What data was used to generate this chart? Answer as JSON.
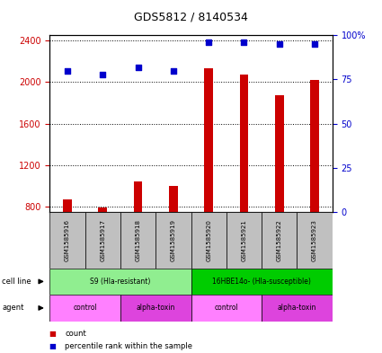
{
  "title": "GDS5812 / 8140534",
  "samples": [
    "GSM1585916",
    "GSM1585917",
    "GSM1585918",
    "GSM1585919",
    "GSM1585920",
    "GSM1585921",
    "GSM1585922",
    "GSM1585923"
  ],
  "counts": [
    870,
    790,
    1040,
    1000,
    2130,
    2070,
    1870,
    2020
  ],
  "percentile_ranks": [
    80,
    78,
    82,
    80,
    96,
    96,
    95,
    95
  ],
  "ylim_left": [
    750,
    2450
  ],
  "ylim_right": [
    0,
    100
  ],
  "yticks_left": [
    800,
    1200,
    1600,
    2000,
    2400
  ],
  "yticks_right": [
    0,
    25,
    50,
    75,
    100
  ],
  "cell_line_groups": [
    {
      "label": "S9 (Hla-resistant)",
      "start": 0,
      "end": 3,
      "color": "#90EE90"
    },
    {
      "label": "16HBE14o- (Hla-susceptible)",
      "start": 4,
      "end": 7,
      "color": "#00CC00"
    }
  ],
  "agent_groups": [
    {
      "label": "control",
      "start": 0,
      "end": 1,
      "color": "#FF80FF"
    },
    {
      "label": "alpha-toxin",
      "start": 2,
      "end": 3,
      "color": "#DD44DD"
    },
    {
      "label": "control",
      "start": 4,
      "end": 5,
      "color": "#FF80FF"
    },
    {
      "label": "alpha-toxin",
      "start": 6,
      "end": 7,
      "color": "#DD44DD"
    }
  ],
  "bar_color": "#CC0000",
  "dot_color": "#0000CC",
  "bar_width": 0.25,
  "sample_box_color": "#C0C0C0",
  "left_axis_color": "#CC0000",
  "right_axis_color": "#0000CC",
  "legend_items": [
    {
      "label": "count",
      "color": "#CC0000"
    },
    {
      "label": "percentile rank within the sample",
      "color": "#0000CC"
    }
  ]
}
